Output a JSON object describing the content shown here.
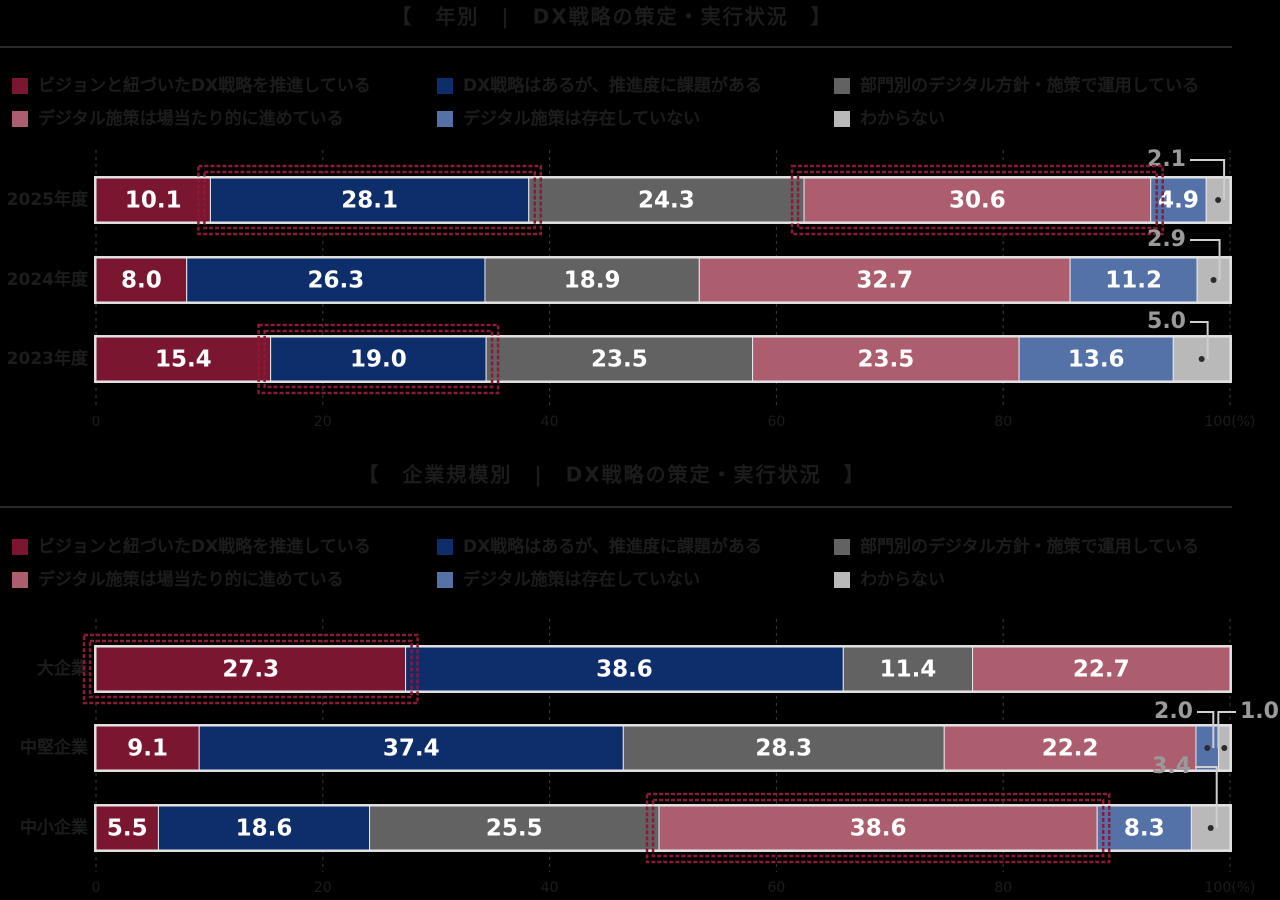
{
  "colors": {
    "background": "#000000",
    "cat1": "#7b1631",
    "cat2": "#0d2d6b",
    "cat3": "#626262",
    "cat4": "#ac5e6f",
    "cat5": "#5472a8",
    "cat6": "#b9b9b9",
    "highlight": "#8a1a37",
    "muted_text": "#1c1c1c",
    "value_text": "#ffffff",
    "outside_label": "#9a9a9a",
    "gridline": "#3a3a3a"
  },
  "legend_items": [
    {
      "label": "ビジョンと紐づいたDX戦略を推進している",
      "color_key": "cat1"
    },
    {
      "label": "DX戦略はあるが、推進度に課題がある",
      "color_key": "cat2"
    },
    {
      "label": "部門別のデジタル方針・施策で運用している",
      "color_key": "cat3"
    },
    {
      "label": "デジタル施策は場当たり的に進めている",
      "color_key": "cat4"
    },
    {
      "label": "デジタル施策は存在していない",
      "color_key": "cat5"
    },
    {
      "label": "わからない",
      "color_key": "cat6"
    }
  ],
  "chart_data": [
    {
      "type": "bar",
      "orientation": "horizontal",
      "stacked": true,
      "title": "【　年別　|　DX戦略の策定・実行状況　】",
      "xlim": [
        0,
        100
      ],
      "x_ticks": [
        "0",
        "20",
        "40",
        "60",
        "80",
        "100(%)"
      ],
      "categories": [
        "2025年度",
        "2024年度",
        "2023年度"
      ],
      "series": [
        {
          "name": "ビジョンと紐づいたDX戦略を推進している",
          "values": [
            10.1,
            8.0,
            15.4
          ]
        },
        {
          "name": "DX戦略はあるが、推進度に課題がある",
          "values": [
            28.1,
            26.3,
            19.0
          ]
        },
        {
          "name": "部門別のデジタル方針・施策で運用している",
          "values": [
            24.3,
            18.9,
            23.5
          ]
        },
        {
          "name": "デジタル施策は場当たり的に進めている",
          "values": [
            30.6,
            32.7,
            23.5
          ]
        },
        {
          "name": "デジタル施策は存在していない",
          "values": [
            4.9,
            11.2,
            13.6
          ]
        },
        {
          "name": "わからない",
          "values": [
            2.1,
            2.9,
            5.0
          ]
        }
      ],
      "value_labels": [
        [
          "10.1",
          "28.1",
          "24.3",
          "30.6",
          "4.9",
          "2.1"
        ],
        [
          "8.0",
          "26.3",
          "18.9",
          "32.7",
          "11.2",
          "2.9"
        ],
        [
          "15.4",
          "19.0",
          "23.5",
          "23.5",
          "13.6",
          "5.0"
        ]
      ],
      "highlighted": [
        [
          0,
          1
        ],
        [
          0,
          3
        ],
        [
          2,
          1
        ]
      ]
    },
    {
      "type": "bar",
      "orientation": "horizontal",
      "stacked": true,
      "title": "【　企業規模別　|　DX戦略の策定・実行状況　】",
      "xlim": [
        0,
        100
      ],
      "x_ticks": [
        "0",
        "20",
        "40",
        "60",
        "80",
        "100(%)"
      ],
      "categories": [
        "大企業",
        "中堅企業",
        "中小企業"
      ],
      "series": [
        {
          "name": "ビジョンと紐づいたDX戦略を推進している",
          "values": [
            27.3,
            9.1,
            5.5
          ]
        },
        {
          "name": "DX戦略はあるが、推進度に課題がある",
          "values": [
            38.6,
            37.4,
            18.6
          ]
        },
        {
          "name": "部門別のデジタル方針・施策で運用している",
          "values": [
            11.4,
            28.3,
            25.5
          ]
        },
        {
          "name": "デジタル施策は場当たり的に進めている",
          "values": [
            22.7,
            22.2,
            38.6
          ]
        },
        {
          "name": "デジタル施策は存在していない",
          "values": [
            0,
            2.0,
            8.3
          ]
        },
        {
          "name": "わからない",
          "values": [
            0,
            1.0,
            3.4
          ]
        }
      ],
      "value_labels": [
        [
          "27.3",
          "38.6",
          "11.4",
          "22.7",
          "",
          ""
        ],
        [
          "9.1",
          "37.4",
          "28.3",
          "22.2",
          "2.0",
          "1.0"
        ],
        [
          "5.5",
          "18.6",
          "25.5",
          "38.6",
          "8.3",
          "3.4"
        ]
      ],
      "highlighted": [
        [
          0,
          0
        ],
        [
          2,
          3
        ]
      ]
    }
  ]
}
